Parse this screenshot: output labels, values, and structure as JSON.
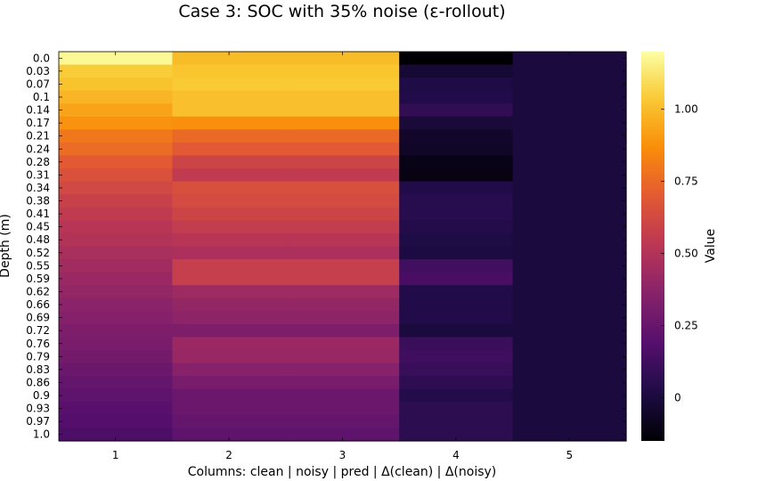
{
  "chart_data": {
    "type": "heatmap",
    "title": "Case 3: SOC with 35% noise (ε-rollout)",
    "xlabel": "Columns: clean | noisy | pred | Δ(clean) | Δ(noisy)",
    "ylabel": "Depth (m)",
    "colorbar_label": "Value",
    "colormap": "inferno",
    "clim": [
      -0.15,
      1.2
    ],
    "colorbar_ticks": [
      0,
      0.25,
      0.5,
      0.75,
      1.0
    ],
    "colorbar_tick_labels": [
      "0",
      "0.25",
      "0.50",
      "0.75",
      "1.00"
    ],
    "x_ticks": [
      "1",
      "2",
      "3",
      "4",
      "5"
    ],
    "depths": [
      "0.0",
      "0.03",
      "0.07",
      "0.1",
      "0.14",
      "0.17",
      "0.21",
      "0.24",
      "0.28",
      "0.31",
      "0.34",
      "0.38",
      "0.41",
      "0.45",
      "0.48",
      "0.52",
      "0.55",
      "0.59",
      "0.62",
      "0.66",
      "0.69",
      "0.72",
      "0.76",
      "0.79",
      "0.83",
      "0.86",
      "0.9",
      "0.93",
      "0.97",
      "1.0"
    ],
    "columns": [
      {
        "name": "clean",
        "values": [
          1.18,
          1.05,
          1.02,
          0.98,
          0.93,
          0.88,
          0.8,
          0.76,
          0.7,
          0.66,
          0.62,
          0.58,
          0.55,
          0.52,
          0.5,
          0.47,
          0.44,
          0.42,
          0.4,
          0.37,
          0.35,
          0.33,
          0.31,
          0.29,
          0.26,
          0.24,
          0.22,
          0.2,
          0.18,
          0.16
        ]
      },
      {
        "name": "noisy",
        "values": [
          1.0,
          1.03,
          1.04,
          1.01,
          1.01,
          0.87,
          0.75,
          0.7,
          0.6,
          0.55,
          0.65,
          0.63,
          0.6,
          0.56,
          0.52,
          0.48,
          0.57,
          0.57,
          0.43,
          0.4,
          0.38,
          0.33,
          0.42,
          0.41,
          0.36,
          0.31,
          0.26,
          0.26,
          0.24,
          0.22
        ]
      },
      {
        "name": "pred",
        "values": [
          1.0,
          1.03,
          1.04,
          1.01,
          1.01,
          0.87,
          0.75,
          0.7,
          0.6,
          0.55,
          0.65,
          0.63,
          0.6,
          0.56,
          0.52,
          0.48,
          0.57,
          0.57,
          0.43,
          0.4,
          0.38,
          0.33,
          0.42,
          0.41,
          0.36,
          0.31,
          0.26,
          0.26,
          0.24,
          0.22
        ]
      },
      {
        "name": "Δ(clean)",
        "values": [
          -0.18,
          -0.02,
          0.02,
          0.03,
          0.08,
          -0.01,
          -0.05,
          -0.06,
          -0.1,
          -0.11,
          0.03,
          0.05,
          0.05,
          0.04,
          0.02,
          0.01,
          0.13,
          0.15,
          0.03,
          0.03,
          0.03,
          0.0,
          0.11,
          0.12,
          0.1,
          0.07,
          0.04,
          0.06,
          0.06,
          0.06
        ]
      },
      {
        "name": "Δ(noisy)",
        "values": [
          0.0,
          0.0,
          0.0,
          0.0,
          0.0,
          0.0,
          0.0,
          0.0,
          0.0,
          0.0,
          0.0,
          0.0,
          0.0,
          0.0,
          0.0,
          0.0,
          0.0,
          0.0,
          0.0,
          0.0,
          0.0,
          0.0,
          0.0,
          0.0,
          0.0,
          0.0,
          0.0,
          0.0,
          0.0,
          0.0
        ]
      }
    ]
  }
}
